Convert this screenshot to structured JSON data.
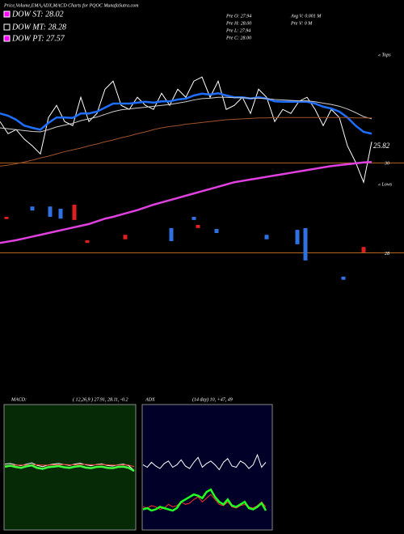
{
  "chart_data": [
    {
      "type": "line",
      "title": "Price,Volume,EMA,ADX,MACD Charts for PQOC MunafaSutra.com",
      "legend": [
        "DOW ST: 28.02",
        "DOW MT: 28.28",
        "DOW PT: 27.57"
      ],
      "info": [
        "Pre  O: 27.94",
        "Pre  H: 28.00",
        "Pre  L: 27.94",
        "Pre  C: 28.00",
        "Avg  V: 0.001  M",
        "Pre  V: 0  M"
      ],
      "annotations": [
        "« Tops",
        "« Lows",
        "25.82"
      ],
      "ylim": [
        27,
        32.4
      ],
      "yticks": [
        30,
        28
      ],
      "grid": true,
      "grid_color": "#b5651d",
      "series": [
        {
          "name": "Price",
          "color": "#ffffff",
          "values": [
            30.92,
            30.65,
            30.74,
            30.53,
            30.38,
            30.2,
            31.01,
            31.28,
            30.92,
            30.83,
            31.46,
            30.92,
            31.1,
            31.64,
            31.82,
            31.28,
            31.19,
            31.46,
            31.28,
            31.19,
            31.55,
            31.28,
            31.64,
            31.46,
            31.82,
            31.91,
            31.46,
            31.82,
            31.19,
            31.28,
            31.46,
            31.1,
            31.64,
            31.46,
            30.92,
            31.19,
            31.1,
            31.37,
            31.46,
            31.19,
            30.83,
            31.19,
            31.01,
            30.38,
            30.02,
            29.57,
            30.47
          ]
        },
        {
          "name": "EMA short",
          "color": "#1e6fff",
          "values": [
            31.1,
            31.05,
            30.96,
            30.83,
            30.78,
            30.74,
            30.89,
            31.01,
            31.01,
            31.0,
            31.1,
            31.1,
            31.14,
            31.23,
            31.32,
            31.32,
            31.32,
            31.34,
            31.36,
            31.34,
            31.37,
            31.37,
            31.41,
            31.43,
            31.5,
            31.54,
            31.52,
            31.55,
            31.5,
            31.46,
            31.46,
            31.43,
            31.46,
            31.43,
            31.37,
            31.36,
            31.36,
            31.36,
            31.36,
            31.32,
            31.25,
            31.21,
            31.14,
            31.01,
            30.83,
            30.69,
            30.65
          ]
        },
        {
          "name": "EMA mid",
          "color": "#cccccc",
          "values": [
            30.78,
            30.76,
            30.74,
            30.72,
            30.7,
            30.69,
            30.74,
            30.8,
            30.84,
            30.88,
            30.94,
            30.98,
            31.02,
            31.08,
            31.14,
            31.18,
            31.2,
            31.22,
            31.24,
            31.26,
            31.28,
            31.3,
            31.33,
            31.36,
            31.4,
            31.43,
            31.44,
            31.46,
            31.46,
            31.45,
            31.45,
            31.44,
            31.44,
            31.43,
            31.41,
            31.4,
            31.39,
            31.38,
            31.38,
            31.36,
            31.33,
            31.3,
            31.26,
            31.2,
            31.12,
            31.03,
            30.98
          ]
        },
        {
          "name": "EMA long",
          "color": "#a0522d",
          "values": [
            29.93,
            29.95,
            29.98,
            30.02,
            30.06,
            30.11,
            30.15,
            30.2,
            30.25,
            30.29,
            30.33,
            30.38,
            30.42,
            30.47,
            30.51,
            30.56,
            30.6,
            30.65,
            30.69,
            30.74,
            30.78,
            30.81,
            30.83,
            30.86,
            30.88,
            30.9,
            30.92,
            30.94,
            30.96,
            30.97,
            30.98,
            30.99,
            31.0,
            31.0,
            31.01,
            31.01,
            31.01,
            31.01,
            31.01,
            31.01,
            31.01,
            31.01,
            31.01,
            31.01,
            31.0,
            31.0,
            31.0
          ]
        },
        {
          "name": "Trend",
          "color": "#e040e0",
          "values": [
            28.22,
            28.25,
            28.28,
            28.32,
            28.36,
            28.4,
            28.44,
            28.48,
            28.52,
            28.56,
            28.6,
            28.64,
            28.7,
            28.76,
            28.8,
            28.85,
            28.9,
            28.95,
            29.01,
            29.07,
            29.12,
            29.17,
            29.22,
            29.27,
            29.32,
            29.37,
            29.42,
            29.47,
            29.52,
            29.57,
            29.6,
            29.63,
            29.66,
            29.69,
            29.72,
            29.75,
            29.78,
            29.81,
            29.84,
            29.87,
            29.9,
            29.93,
            29.95,
            29.97,
            29.99,
            30.01,
            30.02
          ]
        }
      ],
      "candles": {
        "x": [
          0.8,
          4,
          6.2,
          7.5,
          9.2,
          10.8,
          15.5,
          21.2,
          24,
          24.5,
          26.8,
          33,
          36.8,
          37.8,
          42.5,
          45
        ],
        "open": [
          28.8,
          28.94,
          28.8,
          28.76,
          29.07,
          28.28,
          28.4,
          28.26,
          28.73,
          28.62,
          28.44,
          28.3,
          28.19,
          27.83,
          27.4,
          28.13
        ],
        "close": [
          28.75,
          29.03,
          29.03,
          28.98,
          28.73,
          28.22,
          28.3,
          28.55,
          28.8,
          28.55,
          28.53,
          28.4,
          28.51,
          28.55,
          27.47,
          28.01
        ],
        "up_color": "#3070e0",
        "down_color": "#e02020"
      }
    },
    {
      "type": "line",
      "title": "MACD:",
      "subtitle": "( 12,26,9 ) 27.91, 28.11, -0.2",
      "ylim": [
        -2,
        2
      ],
      "series": [
        {
          "name": "MACD",
          "color": "#ffffff",
          "values": [
            0.1,
            0.12,
            0.08,
            0.05,
            0.1,
            0.14,
            0.06,
            0.02,
            0.07,
            0.1,
            0.12,
            0.09,
            0.06,
            0.1,
            0.13,
            0.08,
            0.05,
            0.09,
            0.11,
            0.06,
            0.04,
            0.08,
            0.1,
            0.05,
            -0.1
          ]
        },
        {
          "name": "Signal",
          "color": "#ff4040",
          "values": [
            0.05,
            0.06,
            0.07,
            0.07,
            0.07,
            0.08,
            0.08,
            0.07,
            0.07,
            0.08,
            0.08,
            0.09,
            0.08,
            0.08,
            0.09,
            0.09,
            0.08,
            0.08,
            0.09,
            0.08,
            0.07,
            0.07,
            0.08,
            0.07,
            0.02
          ]
        },
        {
          "name": "Histogram",
          "color": "#40ff40",
          "values": [
            0.02,
            0.05,
            0.01,
            -0.02,
            0.03,
            0.06,
            -0.02,
            -0.05,
            0.0,
            0.02,
            0.04,
            0.0,
            -0.02,
            0.02,
            0.04,
            -0.01,
            -0.03,
            0.01,
            0.02,
            -0.02,
            -0.03,
            0.01,
            0.02,
            -0.02,
            -0.12
          ]
        }
      ]
    },
    {
      "type": "line",
      "title": "ADX",
      "subtitle": "(14  day) 10, +47, 49",
      "ylim": [
        0,
        100
      ],
      "series": [
        {
          "name": "+DI",
          "color": "#ffffff",
          "values": [
            52,
            50,
            54,
            51,
            49,
            53,
            55,
            50,
            52,
            56,
            51,
            49,
            54,
            58,
            50,
            53,
            55,
            52,
            48,
            54,
            57,
            51,
            50,
            55,
            53,
            49,
            52,
            60,
            50,
            54
          ]
        },
        {
          "name": "-DI",
          "color": "#ff3030",
          "values": [
            18,
            17,
            19,
            18,
            16,
            17,
            20,
            18,
            19,
            22,
            20,
            21,
            24,
            26,
            22,
            25,
            28,
            24,
            20,
            19,
            22,
            18,
            17,
            19,
            20,
            18,
            17,
            19,
            22,
            18
          ]
        },
        {
          "name": "ADX",
          "color": "#20ff20",
          "values": [
            16,
            17,
            15,
            16,
            18,
            17,
            16,
            15,
            17,
            22,
            24,
            26,
            28,
            27,
            25,
            30,
            32,
            26,
            22,
            20,
            24,
            19,
            18,
            20,
            22,
            17,
            16,
            18,
            21,
            15
          ]
        }
      ]
    }
  ]
}
